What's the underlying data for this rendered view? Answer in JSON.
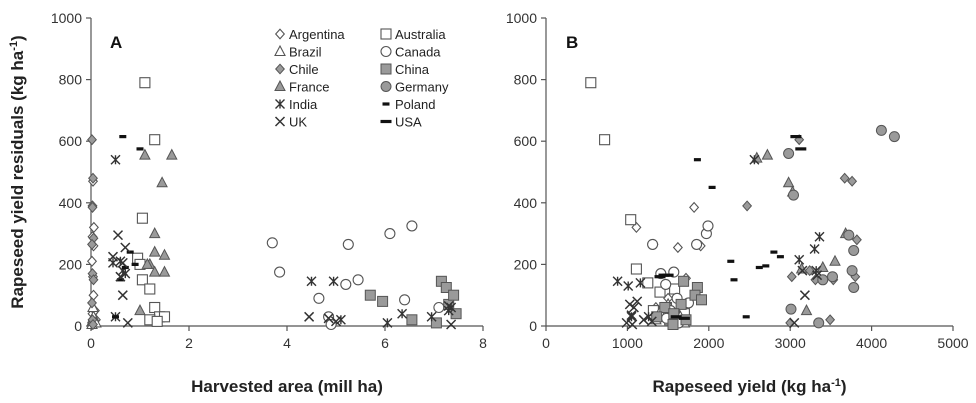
{
  "chart_data": [
    {
      "type": "scatter",
      "panel_label": "A",
      "xlabel": "Harvested area (mill ha)",
      "ylabel": "Rapeseed yield residuals (kg ha-1)",
      "xlim": [
        0,
        8
      ],
      "ylim": [
        0,
        1000
      ],
      "xticks": [
        "0",
        "2",
        "4",
        "6",
        "8"
      ],
      "yticks": [
        "0",
        "200",
        "400",
        "600",
        "800",
        "1000"
      ],
      "grid": false,
      "legend_position": "top-right",
      "series": [
        {
          "name": "Argentina",
          "marker": "diamond-open",
          "points": [
            [
              0.02,
              10
            ],
            [
              0.03,
              40
            ],
            [
              0.05,
              100
            ],
            [
              0.04,
              160
            ],
            [
              0.02,
              210
            ],
            [
              0.05,
              260
            ],
            [
              0.03,
              290
            ],
            [
              0.06,
              320
            ],
            [
              0.03,
              390
            ],
            [
              0.04,
              470
            ],
            [
              0.08,
              50
            ],
            [
              0.1,
              20
            ],
            [
              0.02,
              5
            ]
          ]
        },
        {
          "name": "Australia",
          "marker": "square-open",
          "points": [
            [
              1.1,
              790
            ],
            [
              1.3,
              605
            ],
            [
              1.05,
              350
            ],
            [
              0.95,
              220
            ],
            [
              1.0,
              200
            ],
            [
              1.05,
              150
            ],
            [
              1.2,
              120
            ],
            [
              1.3,
              60
            ],
            [
              1.4,
              30
            ],
            [
              1.2,
              20
            ],
            [
              1.5,
              30
            ],
            [
              1.35,
              15
            ]
          ]
        },
        {
          "name": "Brazil",
          "marker": "triangle-open",
          "points": [
            [
              0.02,
              5
            ],
            [
              0.03,
              15
            ],
            [
              0.05,
              30
            ],
            [
              0.04,
              60
            ],
            [
              0.1,
              10
            ]
          ]
        },
        {
          "name": "Canada",
          "marker": "circle-open",
          "points": [
            [
              3.7,
              270
            ],
            [
              3.85,
              175
            ],
            [
              5.25,
              265
            ],
            [
              5.2,
              135
            ],
            [
              6.1,
              300
            ],
            [
              6.55,
              325
            ],
            [
              4.65,
              90
            ],
            [
              4.85,
              30
            ],
            [
              4.9,
              5
            ],
            [
              5.45,
              150
            ],
            [
              6.4,
              85
            ],
            [
              7.1,
              60
            ]
          ]
        },
        {
          "name": "Chile",
          "marker": "diamond-filled",
          "points": [
            [
              0.02,
              605
            ],
            [
              0.04,
              480
            ],
            [
              0.03,
              385
            ],
            [
              0.05,
              285
            ],
            [
              0.02,
              265
            ],
            [
              0.03,
              170
            ],
            [
              0.05,
              150
            ],
            [
              0.02,
              75
            ],
            [
              0.03,
              20
            ],
            [
              0.04,
              5
            ]
          ]
        },
        {
          "name": "China",
          "marker": "square-filled",
          "points": [
            [
              5.7,
              100
            ],
            [
              5.95,
              80
            ],
            [
              6.55,
              20
            ],
            [
              7.15,
              145
            ],
            [
              7.25,
              125
            ],
            [
              7.3,
              70
            ],
            [
              7.45,
              40
            ],
            [
              7.05,
              10
            ],
            [
              7.4,
              100
            ]
          ]
        },
        {
          "name": "France",
          "marker": "triangle-filled",
          "points": [
            [
              1.1,
              555
            ],
            [
              1.45,
              465
            ],
            [
              1.65,
              555
            ],
            [
              1.3,
              300
            ],
            [
              1.3,
              240
            ],
            [
              1.5,
              230
            ],
            [
              1.2,
              200
            ],
            [
              1.5,
              175
            ],
            [
              1.15,
              200
            ],
            [
              1.0,
              50
            ],
            [
              1.3,
              175
            ]
          ]
        },
        {
          "name": "Germany",
          "marker": "circle-filled",
          "points": []
        },
        {
          "name": "India",
          "marker": "asterisk",
          "points": [
            [
              0.5,
              540
            ],
            [
              0.6,
              210
            ],
            [
              0.65,
              180
            ],
            [
              0.45,
              205
            ],
            [
              0.7,
              170
            ],
            [
              0.5,
              30
            ],
            [
              4.5,
              145
            ],
            [
              4.95,
              145
            ],
            [
              5.1,
              20
            ],
            [
              6.05,
              10
            ],
            [
              6.35,
              40
            ],
            [
              6.95,
              30
            ],
            [
              7.3,
              50
            ],
            [
              7.35,
              60
            ]
          ]
        },
        {
          "name": "Poland",
          "marker": "dash-short",
          "points": [
            [
              0.65,
              615
            ],
            [
              1.0,
              575
            ],
            [
              0.8,
              240
            ],
            [
              0.7,
              190
            ],
            [
              0.9,
              200
            ],
            [
              0.6,
              150
            ],
            [
              0.5,
              30
            ]
          ]
        },
        {
          "name": "UK",
          "marker": "x",
          "points": [
            [
              0.55,
              295
            ],
            [
              0.7,
              255
            ],
            [
              0.45,
              225
            ],
            [
              0.65,
              205
            ],
            [
              0.6,
              160
            ],
            [
              0.65,
              100
            ],
            [
              0.75,
              10
            ],
            [
              4.45,
              30
            ],
            [
              4.85,
              25
            ],
            [
              5.0,
              15
            ],
            [
              7.3,
              65
            ],
            [
              7.35,
              5
            ]
          ]
        },
        {
          "name": "USA",
          "marker": "dash-long",
          "points": []
        }
      ]
    },
    {
      "type": "scatter",
      "panel_label": "B",
      "xlabel": "Rapeseed yield (kg ha-1)",
      "ylabel": "",
      "xlim": [
        0,
        5000
      ],
      "ylim": [
        0,
        1000
      ],
      "xticks": [
        "0",
        "1000",
        "2000",
        "3000",
        "4000",
        "5000"
      ],
      "yticks": [
        "0",
        "200",
        "400",
        "600",
        "800",
        "1000"
      ],
      "grid": false,
      "series": [
        {
          "name": "Argentina",
          "marker": "diamond-open",
          "points": [
            [
              1820,
              385
            ],
            [
              1110,
              320
            ],
            [
              1320,
              265
            ],
            [
              1620,
              255
            ],
            [
              1900,
              260
            ],
            [
              1720,
              155
            ],
            [
              1500,
              90
            ],
            [
              1460,
              35
            ],
            [
              1700,
              25
            ],
            [
              1350,
              60
            ]
          ]
        },
        {
          "name": "Australia",
          "marker": "square-open",
          "points": [
            [
              550,
              790
            ],
            [
              720,
              605
            ],
            [
              1040,
              345
            ],
            [
              1110,
              185
            ],
            [
              1250,
              140
            ],
            [
              1320,
              50
            ],
            [
              1480,
              60
            ],
            [
              1520,
              20
            ],
            [
              1620,
              15
            ],
            [
              1700,
              40
            ],
            [
              1400,
              110
            ],
            [
              1580,
              120
            ]
          ]
        },
        {
          "name": "Brazil",
          "marker": "triangle-open",
          "points": [
            [
              1350,
              20
            ],
            [
              1400,
              45
            ],
            [
              1500,
              70
            ],
            [
              1650,
              30
            ],
            [
              1700,
              10
            ]
          ]
        },
        {
          "name": "Canada",
          "marker": "circle-open",
          "points": [
            [
              1310,
              265
            ],
            [
              1850,
              265
            ],
            [
              1970,
              300
            ],
            [
              1990,
              325
            ],
            [
              1410,
              170
            ],
            [
              1570,
              175
            ],
            [
              1470,
              135
            ],
            [
              1610,
              90
            ],
            [
              1530,
              50
            ],
            [
              1480,
              25
            ],
            [
              1630,
              10
            ],
            [
              1750,
              75
            ]
          ]
        },
        {
          "name": "Chile",
          "marker": "diamond-filled",
          "points": [
            [
              3110,
              605
            ],
            [
              3670,
              480
            ],
            [
              3760,
              470
            ],
            [
              2470,
              390
            ],
            [
              3820,
              280
            ],
            [
              3020,
              160
            ],
            [
              3530,
              150
            ],
            [
              3800,
              160
            ],
            [
              3240,
              180
            ],
            [
              3490,
              20
            ],
            [
              3000,
              10
            ],
            [
              3310,
              150
            ]
          ]
        },
        {
          "name": "China",
          "marker": "square-filled",
          "points": [
            [
              1860,
              125
            ],
            [
              1830,
              100
            ],
            [
              1910,
              85
            ],
            [
              1660,
              70
            ],
            [
              1460,
              60
            ],
            [
              1570,
              40
            ],
            [
              1720,
              20
            ],
            [
              1360,
              30
            ],
            [
              1560,
              5
            ],
            [
              1690,
              145
            ]
          ]
        },
        {
          "name": "France",
          "marker": "triangle-filled",
          "points": [
            [
              2590,
              545
            ],
            [
              2720,
              555
            ],
            [
              2980,
              465
            ],
            [
              3030,
              435
            ],
            [
              3140,
              185
            ],
            [
              3400,
              190
            ],
            [
              3550,
              210
            ],
            [
              3680,
              300
            ],
            [
              3200,
              50
            ]
          ]
        },
        {
          "name": "Germany",
          "marker": "circle-filled",
          "points": [
            [
              4120,
              635
            ],
            [
              4280,
              615
            ],
            [
              2980,
              560
            ],
            [
              3040,
              425
            ],
            [
              3720,
              295
            ],
            [
              3780,
              245
            ],
            [
              3760,
              180
            ],
            [
              3520,
              160
            ],
            [
              3400,
              150
            ],
            [
              3780,
              125
            ],
            [
              3010,
              55
            ],
            [
              3350,
              10
            ]
          ]
        },
        {
          "name": "India",
          "marker": "asterisk",
          "points": [
            [
              880,
              145
            ],
            [
              1010,
              130
            ],
            [
              1160,
              140
            ],
            [
              1050,
              30
            ],
            [
              1260,
              30
            ],
            [
              2560,
              540
            ],
            [
              3360,
              290
            ],
            [
              3110,
              215
            ],
            [
              3320,
              180
            ],
            [
              3300,
              250
            ]
          ]
        },
        {
          "name": "Poland",
          "marker": "dash-short",
          "points": [
            [
              1860,
              540
            ],
            [
              2040,
              450
            ],
            [
              2270,
              210
            ],
            [
              2310,
              150
            ],
            [
              2620,
              190
            ],
            [
              2700,
              195
            ],
            [
              2800,
              240
            ],
            [
              2880,
              225
            ],
            [
              2460,
              30
            ]
          ]
        },
        {
          "name": "UK",
          "marker": "x",
          "points": [
            [
              990,
              10
            ],
            [
              1050,
              35
            ],
            [
              1080,
              60
            ],
            [
              1120,
              80
            ],
            [
              1200,
              20
            ],
            [
              1030,
              70
            ],
            [
              1060,
              5
            ],
            [
              1300,
              15
            ],
            [
              3180,
              100
            ],
            [
              3330,
              165
            ],
            [
              3150,
              180
            ],
            [
              3050,
              10
            ]
          ]
        },
        {
          "name": "USA",
          "marker": "dash-long",
          "points": [
            [
              3070,
              615
            ],
            [
              3130,
              575
            ],
            [
              1400,
              160
            ],
            [
              1450,
              165
            ],
            [
              1500,
              165
            ],
            [
              1600,
              30
            ],
            [
              1700,
              25
            ]
          ]
        }
      ]
    }
  ]
}
